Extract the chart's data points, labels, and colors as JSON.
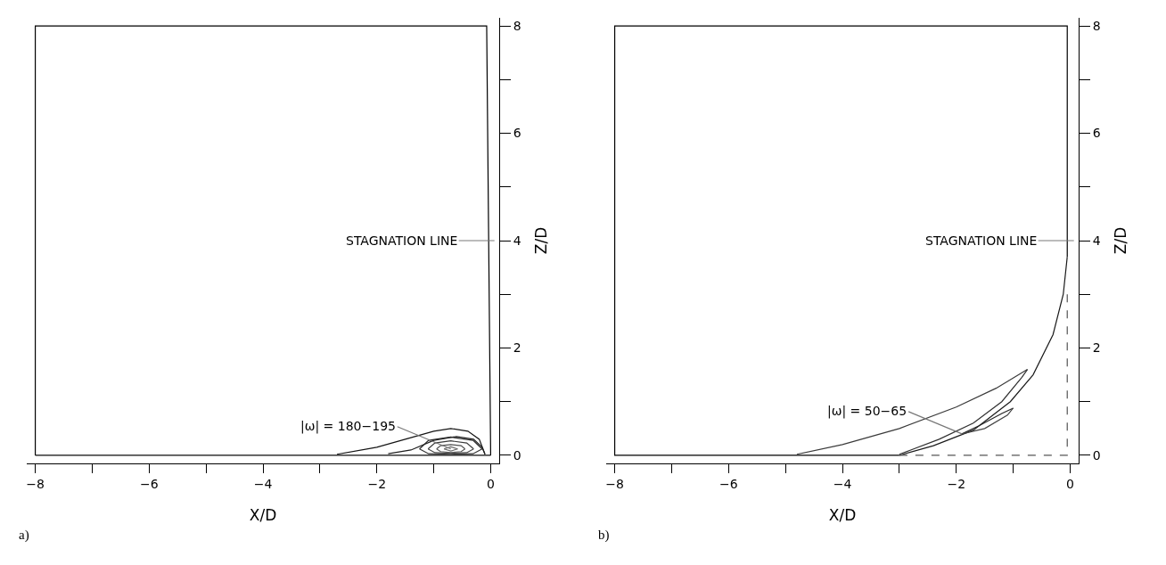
{
  "chart_data": [
    {
      "type": "line",
      "xlabel": "X/D",
      "ylabel": "Z/D",
      "xlim": [
        -8.15,
        0.15
      ],
      "ylim": [
        -0.15,
        8.15
      ],
      "xticks": [
        -8,
        {
          "value": -7,
          "label": null
        },
        -6,
        {
          "value": -5,
          "label": null
        },
        -4,
        {
          "value": -3,
          "label": null
        },
        -2,
        {
          "value": -1,
          "label": null
        },
        0
      ],
      "yticks": [
        0,
        {
          "value": 1,
          "label": null
        },
        2,
        {
          "value": 3,
          "label": null
        },
        4,
        {
          "value": 5,
          "label": null
        },
        6,
        {
          "value": 7,
          "label": null
        },
        8
      ],
      "grid": false,
      "marker": "none",
      "line_style": "solid",
      "annotations": [
        "STAGNATION LINE",
        {
          "text": "|ω| = 180−195",
          "x": -0.7,
          "y": 0.12
        },
        "a)"
      ],
      "series": [
        {
          "color": "#000000",
          "x": [
            0,
            -0.07,
            -8,
            -8
          ],
          "values": [
            0,
            8,
            8,
            0
          ]
        },
        {
          "color": "#0a0a0a",
          "x": [
            -8,
            0
          ],
          "values": [
            0,
            0
          ]
        },
        {
          "color": "#141414",
          "x": [
            -2.7,
            -2.0,
            -1.5,
            -1.0,
            -0.7,
            -0.4,
            -0.2,
            -0.1
          ],
          "values": [
            0.02,
            0.15,
            0.3,
            0.45,
            0.5,
            0.45,
            0.3,
            0.02
          ]
        },
        {
          "color": "#1e1e1e",
          "x": [
            -1.8,
            -1.4,
            -1.0,
            -0.6,
            -0.3,
            -0.15,
            -0.1
          ],
          "values": [
            0.03,
            0.1,
            0.28,
            0.35,
            0.3,
            0.15,
            0.02
          ]
        },
        {
          "color": "#282828",
          "x": [
            -1.25,
            -1.09,
            -0.7,
            -0.31,
            -0.15
          ],
          "values": [
            0.12,
            0.28,
            0.34,
            0.28,
            0.12
          ]
        },
        {
          "color": "#323232",
          "x": [
            -1.25,
            -1.09,
            -0.7,
            -0.31,
            -0.15
          ],
          "values": [
            0.12,
            0.03,
            0.02,
            0.03,
            0.12
          ]
        },
        {
          "color": "#3c3c3c",
          "x": [
            -1.1,
            -0.98,
            -0.7,
            -0.42,
            -0.3
          ],
          "values": [
            0.12,
            0.23,
            0.27,
            0.23,
            0.12
          ]
        },
        {
          "color": "#464646",
          "x": [
            -1.1,
            -0.98,
            -0.7,
            -0.42,
            -0.3
          ],
          "values": [
            0.12,
            0.05,
            0.04,
            0.05,
            0.12
          ]
        },
        {
          "color": "#505050",
          "x": [
            -0.95,
            -0.88,
            -0.7,
            -0.52,
            -0.45
          ],
          "values": [
            0.12,
            0.18,
            0.2,
            0.18,
            0.12
          ]
        },
        {
          "color": "#5a5a5a",
          "x": [
            -0.95,
            -0.88,
            -0.7,
            -0.52,
            -0.45
          ],
          "values": [
            0.12,
            0.07,
            0.05,
            0.07,
            0.12
          ]
        },
        {
          "color": "#646464",
          "x": [
            -0.82,
            -0.7,
            -0.58
          ],
          "values": [
            0.12,
            0.16,
            0.12
          ]
        },
        {
          "color": "#6e6e6e",
          "x": [
            -0.82,
            -0.7,
            -0.58
          ],
          "values": [
            0.12,
            0.08,
            0.12
          ]
        }
      ]
    },
    {
      "type": "line",
      "xlabel": "X/D",
      "ylabel": "Z/D",
      "xlim": [
        -8.15,
        0.15
      ],
      "ylim": [
        -0.15,
        8.15
      ],
      "xticks": [
        -8,
        {
          "value": -7,
          "label": null
        },
        -6,
        {
          "value": -5,
          "label": null
        },
        -4,
        {
          "value": -3,
          "label": null
        },
        -2,
        {
          "value": -1,
          "label": null
        },
        0
      ],
      "yticks": [
        0,
        {
          "value": 1,
          "label": null
        },
        2,
        {
          "value": 3,
          "label": null
        },
        4,
        {
          "value": 5,
          "label": null
        },
        6,
        {
          "value": 7,
          "label": null
        },
        8
      ],
      "grid": false,
      "marker": "none",
      "line_style": "solid",
      "annotations": [
        "STAGNATION LINE",
        {
          "text": "|ω| = 50−65",
          "x": -1.9,
          "y": 0.4
        },
        "b)"
      ],
      "series": [
        {
          "color": "#000000",
          "x": [
            -0.05,
            -0.05,
            -8,
            -8,
            -3
          ],
          "values": [
            3.7,
            8,
            8,
            0,
            0
          ]
        },
        {
          "color": "#1a1a1a",
          "x": [
            -3,
            -2.4,
            -1.7,
            -1.05,
            -0.65,
            -0.3,
            -0.12,
            -0.05
          ],
          "values": [
            0,
            0.18,
            0.47,
            1.0,
            1.5,
            2.25,
            3.0,
            3.7
          ]
        },
        {
          "color": "#3a3a3a",
          "x": [
            -4.8,
            -4,
            -3,
            -2,
            -1.3,
            -0.75
          ],
          "values": [
            0.02,
            0.2,
            0.5,
            0.9,
            1.25,
            1.6
          ]
        },
        {
          "color": "#303030",
          "x": [
            -3,
            -2.8,
            -2.3,
            -1.7,
            -1.2,
            -0.85,
            -0.75
          ],
          "values": [
            0.02,
            0.1,
            0.3,
            0.6,
            1.0,
            1.45,
            1.6
          ]
        },
        {
          "color": "#262626",
          "x": [
            -1.9,
            -1.6,
            -1.2,
            -1.0
          ],
          "values": [
            0.4,
            0.55,
            0.78,
            0.88
          ]
        },
        {
          "color": "#444444",
          "x": [
            -1.9,
            -1.5,
            -1.1,
            -1.0
          ],
          "values": [
            0.4,
            0.5,
            0.75,
            0.88
          ]
        },
        {
          "color": "#555555",
          "x": [
            -3,
            -0.05,
            -0.05
          ],
          "values": [
            0,
            0,
            3.0
          ],
          "line_style": "dashed"
        }
      ]
    }
  ]
}
